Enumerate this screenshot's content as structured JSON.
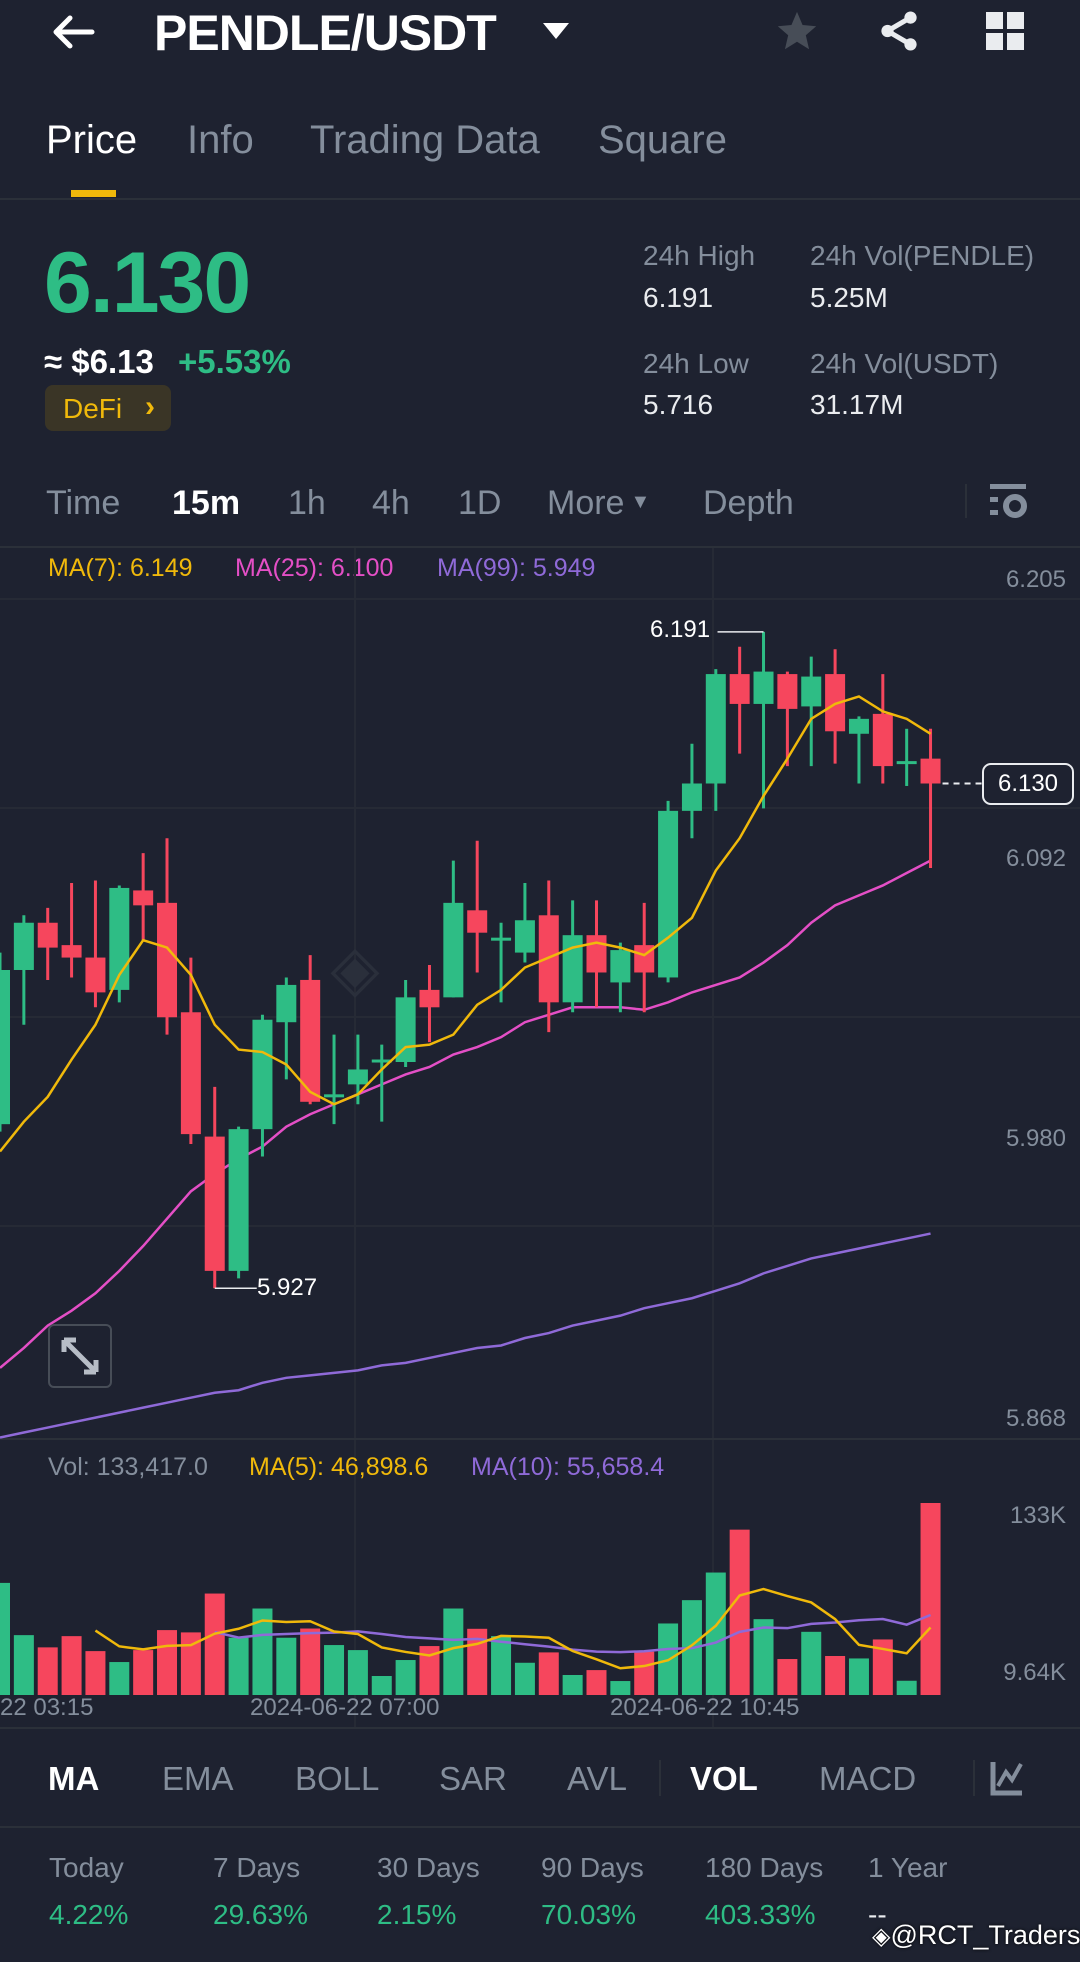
{
  "header": {
    "title": "PENDLE/USDT",
    "icons": [
      "back-arrow-icon",
      "dropdown-triangle-icon",
      "star-icon",
      "share-icon",
      "grid-icon"
    ]
  },
  "tabs": [
    {
      "label": "Price",
      "active": true
    },
    {
      "label": "Info"
    },
    {
      "label": "Trading Data"
    },
    {
      "label": "Square"
    }
  ],
  "ticker": {
    "last_price": "6.130",
    "usd_price": "≈ $6.13",
    "change": "+5.53%",
    "tag": "DeFi",
    "tag_chevron": "›",
    "stats": [
      {
        "label": "24h High",
        "value": "6.191"
      },
      {
        "label": "24h Vol(PENDLE)",
        "value": "5.25M"
      },
      {
        "label": "24h Low",
        "value": "5.716"
      },
      {
        "label": "24h Vol(USDT)",
        "value": "31.17M"
      }
    ]
  },
  "intervals": {
    "items": [
      "Time",
      "15m",
      "1h",
      "4h",
      "1D",
      "More",
      "Depth"
    ],
    "active": "15m"
  },
  "indicators": {
    "main": [
      "MA",
      "EMA",
      "BOLL",
      "SAR",
      "AVL"
    ],
    "sub": [
      "VOL",
      "MACD"
    ],
    "active": [
      "MA",
      "VOL"
    ]
  },
  "performance": [
    {
      "label": "Today",
      "value": "4.22%"
    },
    {
      "label": "7 Days",
      "value": "29.63%"
    },
    {
      "label": "30 Days",
      "value": "2.15%"
    },
    {
      "label": "90 Days",
      "value": "70.03%"
    },
    {
      "label": "180 Days",
      "value": "403.33%"
    },
    {
      "label": "1 Year",
      "value": "--"
    }
  ],
  "watermark": "@RCT_Traders",
  "colors": {
    "up": "#2ebd85",
    "down": "#f6465d",
    "accent": "#f0b90b",
    "ma7": "#f0b90b",
    "ma25": "#e44fc6",
    "ma99": "#8f6ad8",
    "vol_ma5": "#f0b90b",
    "vol_ma10": "#8f6ad8"
  },
  "chart_data": {
    "type": "candlestick",
    "interval": "15m",
    "legend": {
      "ma7": "MA(7): 6.149",
      "ma25": "MA(25): 6.100",
      "ma99": "MA(99): 5.949"
    },
    "ylim": [
      5.868,
      6.205
    ],
    "y_ticks": [
      "6.205",
      "6.092",
      "5.980",
      "5.868"
    ],
    "y_tick_values": [
      6.205,
      6.092,
      5.98,
      5.868
    ],
    "x_ticks": [
      "22 03:15",
      "2024-06-22 07:00",
      "2024-06-22 10:45"
    ],
    "high_marker": {
      "label": "6.191",
      "value": 6.191,
      "index": 32
    },
    "low_marker": {
      "label": "5.927",
      "value": 5.927,
      "index": 9
    },
    "current_price": {
      "label": "6.130",
      "value": 6.13
    },
    "candles_ohlc": [
      [
        5.993,
        6.062,
        5.99,
        6.055
      ],
      [
        6.055,
        6.077,
        6.033,
        6.074
      ],
      [
        6.074,
        6.08,
        6.051,
        6.064
      ],
      [
        6.065,
        6.09,
        6.052,
        6.06
      ],
      [
        6.06,
        6.091,
        6.04,
        6.046
      ],
      [
        6.047,
        6.089,
        6.042,
        6.088
      ],
      [
        6.087,
        6.102,
        6.067,
        6.081
      ],
      [
        6.082,
        6.108,
        6.029,
        6.036
      ],
      [
        6.038,
        6.06,
        5.985,
        5.989
      ],
      [
        5.988,
        6.008,
        5.927,
        5.934
      ],
      [
        5.934,
        5.992,
        5.931,
        5.991
      ],
      [
        5.991,
        6.037,
        5.98,
        6.035
      ],
      [
        6.034,
        6.052,
        6.011,
        6.049
      ],
      [
        6.051,
        6.061,
        6.001,
        6.002
      ],
      [
        6.004,
        6.029,
        5.993,
        6.005
      ],
      [
        6.009,
        6.029,
        6.001,
        6.015
      ],
      [
        6.018,
        6.025,
        5.994,
        6.019
      ],
      [
        6.018,
        6.051,
        6.016,
        6.044
      ],
      [
        6.047,
        6.057,
        6.026,
        6.04
      ],
      [
        6.044,
        6.099,
        6.044,
        6.082
      ],
      [
        6.079,
        6.107,
        6.054,
        6.07
      ],
      [
        6.067,
        6.074,
        6.042,
        6.068
      ],
      [
        6.062,
        6.09,
        6.058,
        6.075
      ],
      [
        6.077,
        6.091,
        6.03,
        6.042
      ],
      [
        6.042,
        6.083,
        6.038,
        6.069
      ],
      [
        6.069,
        6.083,
        6.04,
        6.054
      ],
      [
        6.05,
        6.066,
        6.038,
        6.063
      ],
      [
        6.065,
        6.082,
        6.038,
        6.054
      ],
      [
        6.052,
        6.123,
        6.05,
        6.119
      ],
      [
        6.119,
        6.146,
        6.108,
        6.13
      ],
      [
        6.13,
        6.176,
        6.119,
        6.174
      ],
      [
        6.174,
        6.185,
        6.142,
        6.162
      ],
      [
        6.162,
        6.191,
        6.12,
        6.175
      ],
      [
        6.174,
        6.175,
        6.137,
        6.16
      ],
      [
        6.161,
        6.181,
        6.137,
        6.173
      ],
      [
        6.174,
        6.184,
        6.138,
        6.151
      ],
      [
        6.15,
        6.157,
        6.13,
        6.156
      ],
      [
        6.158,
        6.174,
        6.13,
        6.137
      ],
      [
        6.138,
        6.152,
        6.129,
        6.139
      ],
      [
        6.14,
        6.152,
        6.096,
        6.13
      ]
    ],
    "ma7": [
      5.982,
      5.994,
      6.004,
      6.019,
      6.033,
      6.053,
      6.067,
      6.064,
      6.053,
      6.033,
      6.023,
      6.022,
      6.017,
      6.006,
      6.001,
      6.005,
      6.015,
      6.024,
      6.025,
      6.029,
      6.041,
      6.047,
      6.056,
      6.06,
      6.064,
      6.066,
      6.064,
      6.061,
      6.068,
      6.076,
      6.095,
      6.108,
      6.125,
      6.14,
      6.156,
      6.162,
      6.165,
      6.159,
      6.156,
      6.15
    ],
    "ma25": [
      5.895,
      5.903,
      5.912,
      5.918,
      5.925,
      5.934,
      5.944,
      5.955,
      5.966,
      5.973,
      5.979,
      5.984,
      5.992,
      5.997,
      6.001,
      6.005,
      6.009,
      6.013,
      6.016,
      6.021,
      6.024,
      6.028,
      6.034,
      6.037,
      6.04,
      6.04,
      6.04,
      6.039,
      6.042,
      6.046,
      6.049,
      6.052,
      6.058,
      6.065,
      6.074,
      6.081,
      6.085,
      6.089,
      6.094,
      6.099
    ],
    "ma99": [
      5.867,
      5.869,
      5.871,
      5.873,
      5.875,
      5.877,
      5.879,
      5.881,
      5.883,
      5.885,
      5.886,
      5.889,
      5.891,
      5.892,
      5.893,
      5.894,
      5.896,
      5.897,
      5.899,
      5.901,
      5.903,
      5.904,
      5.907,
      5.909,
      5.912,
      5.914,
      5.916,
      5.919,
      5.921,
      5.923,
      5.926,
      5.929,
      5.933,
      5.936,
      5.939,
      5.941,
      5.943,
      5.945,
      5.947,
      5.949
    ],
    "volume": {
      "legend": {
        "vol": "Vol: 133,417.0",
        "ma5": "MA(5): 46,898.6",
        "ma10": "MA(10): 55,658.4"
      },
      "y_ticks": [
        "133K",
        "9.64K"
      ],
      "values": [
        77900,
        41600,
        33100,
        40900,
        30500,
        22900,
        31200,
        45100,
        43500,
        70500,
        39800,
        60100,
        39800,
        46200,
        34700,
        31200,
        13200,
        24300,
        34000,
        60100,
        46000,
        40900,
        22400,
        29600,
        13900,
        17300,
        9700,
        30100,
        49700,
        65900,
        85100,
        114900,
        52700,
        25000,
        43900,
        27100,
        25400,
        38600,
        9900,
        133417
      ]
    }
  }
}
